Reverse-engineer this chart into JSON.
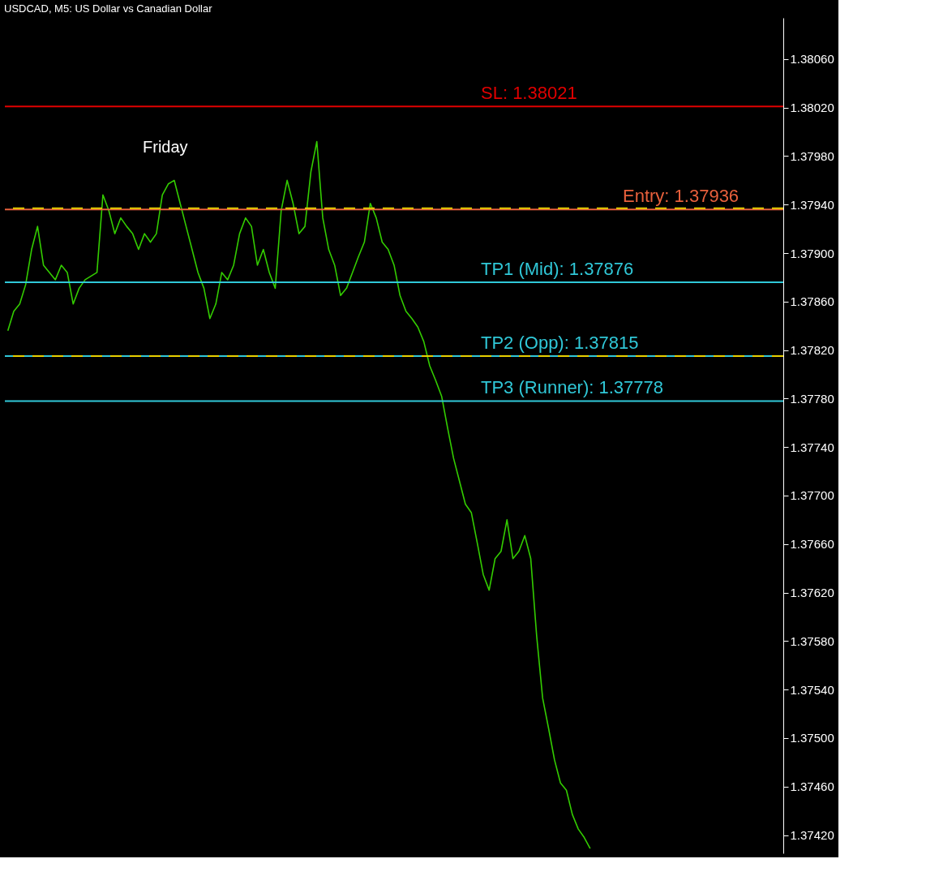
{
  "chart_data": {
    "type": "line",
    "title": "USDCAD, M5: US Dollar vs Canadian Dollar",
    "categories": [
      null,
      null,
      null,
      null,
      null,
      null,
      null,
      null,
      null,
      null,
      null,
      null,
      null,
      null,
      null,
      null,
      null,
      null,
      null,
      null,
      null,
      null,
      null,
      null,
      null,
      null,
      null,
      null,
      null,
      null,
      null,
      null,
      null,
      null,
      null,
      null,
      null,
      null,
      null,
      null,
      null,
      null,
      null,
      null,
      null,
      null,
      null,
      null,
      null,
      null,
      null,
      null,
      null,
      null,
      null,
      null,
      null,
      null,
      null,
      null,
      null,
      null,
      null,
      null,
      null,
      null,
      null,
      null,
      null,
      null,
      null,
      null,
      null,
      null,
      null,
      null,
      null,
      null,
      null,
      null,
      null,
      null,
      null,
      null,
      null,
      null,
      null,
      null,
      null,
      null,
      null,
      null,
      null,
      null,
      null,
      null,
      null,
      null,
      null,
      null,
      null,
      null,
      null,
      null,
      null,
      null,
      null,
      null,
      null,
      null,
      null,
      null,
      null,
      null,
      null,
      null,
      null,
      null,
      null,
      null,
      null,
      null,
      null,
      null,
      null,
      null,
      null,
      null,
      null,
      null,
      null
    ],
    "series": [
      {
        "color": "#33cc00",
        "values": [
          1.37836,
          1.37852,
          1.37858,
          1.37874,
          1.37903,
          1.37922,
          1.3789,
          1.37884,
          1.37878,
          1.3789,
          1.37884,
          1.37858,
          1.37871,
          1.37878,
          1.37881,
          1.37884,
          1.37948,
          1.37935,
          1.37916,
          1.37929,
          1.37922,
          1.37916,
          1.37903,
          1.37916,
          1.37909,
          1.37916,
          1.37948,
          1.37957,
          1.3796,
          1.37941,
          1.37922,
          1.37903,
          1.37884,
          1.37871,
          1.37846,
          1.37858,
          1.37884,
          1.37878,
          1.3789,
          1.37916,
          1.37929,
          1.37922,
          1.3789,
          1.37903,
          1.37884,
          1.37871,
          1.37935,
          1.3796,
          1.37941,
          1.37916,
          1.37922,
          1.37967,
          1.37992,
          1.37929,
          1.37903,
          1.3789,
          1.37865,
          1.37871,
          1.37884,
          1.37897,
          1.37909,
          1.37941,
          1.37929,
          1.37909,
          1.37903,
          1.3789,
          1.37865,
          1.37852,
          1.37846,
          1.37839,
          1.37827,
          1.37807,
          1.37795,
          1.37782,
          1.37756,
          1.37731,
          1.37712,
          1.37693,
          1.37686,
          1.37661,
          1.37635,
          1.37622,
          1.37648,
          1.37654,
          1.3768,
          1.37648,
          1.37654,
          1.37667,
          1.37648,
          1.37584,
          1.37533,
          1.37508,
          1.37482,
          1.37463,
          1.37457,
          1.37437,
          1.37425,
          1.37418,
          1.37409,
          null,
          null,
          null,
          null,
          null,
          null,
          null,
          null,
          null,
          null,
          null,
          null,
          null,
          null,
          null,
          null,
          null,
          null,
          null,
          null,
          null,
          null,
          null,
          null,
          null,
          null,
          null,
          null,
          null,
          null,
          null,
          null
        ]
      }
    ],
    "ylim": [
      1.37405,
      1.38094
    ],
    "yticks": [
      {
        "value": 1.3806,
        "label": "1.38060"
      },
      {
        "value": 1.3802,
        "label": "1.38020"
      },
      {
        "value": 1.3798,
        "label": "1.37980"
      },
      {
        "value": 1.3794,
        "label": "1.37940"
      },
      {
        "value": 1.379,
        "label": "1.37900"
      },
      {
        "value": 1.3786,
        "label": "1.37860"
      },
      {
        "value": 1.3782,
        "label": "1.37820"
      },
      {
        "value": 1.3778,
        "label": "1.37780"
      },
      {
        "value": 1.3774,
        "label": "1.37740"
      },
      {
        "value": 1.377,
        "label": "1.37700"
      },
      {
        "value": 1.3766,
        "label": "1.37660"
      },
      {
        "value": 1.3762,
        "label": "1.37620"
      },
      {
        "value": 1.3758,
        "label": "1.37580"
      },
      {
        "value": 1.3754,
        "label": "1.37540"
      },
      {
        "value": 1.375,
        "label": "1.37500"
      },
      {
        "value": 1.3746,
        "label": "1.37460"
      },
      {
        "value": 1.3742,
        "label": "1.37420"
      }
    ],
    "ref_lines": [
      {
        "axis": "y",
        "value": 1.38021,
        "label": "SL: 1.38021",
        "color": "#e00000"
      },
      {
        "axis": "y",
        "value": 1.37936,
        "label": "Entry: 1.37936",
        "color": "#e8603c"
      },
      {
        "axis": "y",
        "value": 1.37876,
        "label": "TP1 (Mid): 1.37876",
        "color": "#30c8d8"
      },
      {
        "axis": "y",
        "value": 1.37815,
        "label": "TP2 (Opp): 1.37815",
        "color": "#30c8d8"
      },
      {
        "axis": "y",
        "value": 1.37778,
        "label": "TP3 (Runner): 1.37778",
        "color": "#30c8d8"
      },
      {
        "axis": "y",
        "value": 1.37937,
        "color": "#e8d000",
        "line_style": "dashed"
      },
      {
        "axis": "y",
        "value": 1.37815,
        "color": "#e8d000",
        "line_style": "dashed"
      }
    ],
    "annotations": [
      "Friday"
    ],
    "tick_labels": "y",
    "grid": false,
    "marker": "none",
    "line_style": "solid"
  }
}
